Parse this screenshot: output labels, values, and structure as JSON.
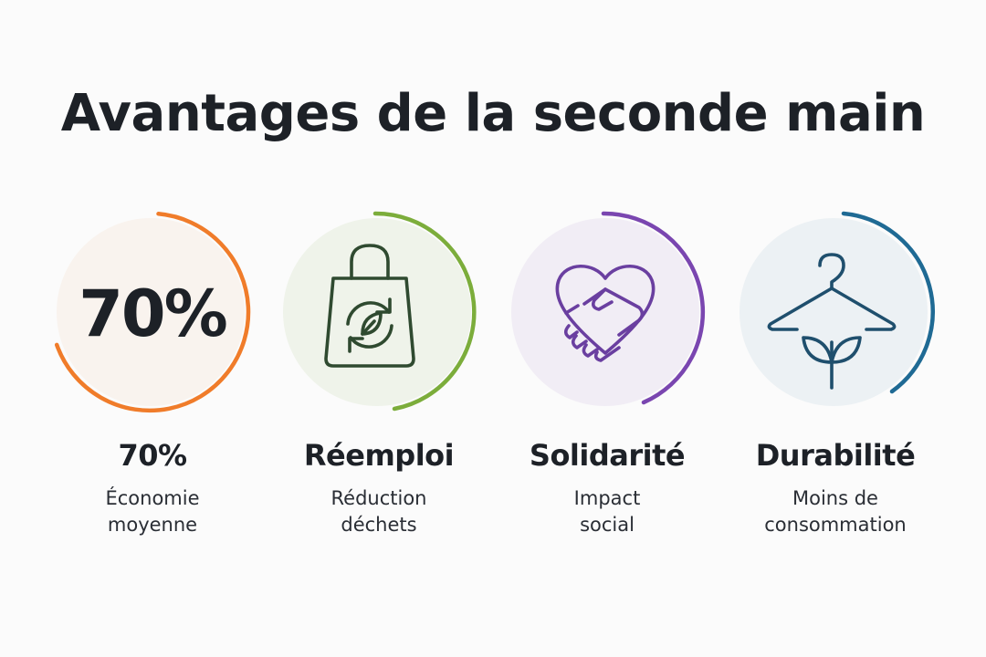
{
  "title": "Avantages de la seconde main",
  "cards": [
    {
      "badge": "70%",
      "title": "70%",
      "subtitle_line1": "Économie",
      "subtitle_line2": "moyenne",
      "icon": "percent-value",
      "accent": "#f07c2a",
      "fill": "#f9f3ee"
    },
    {
      "title": "Réemploi",
      "subtitle_line1": "Réduction",
      "subtitle_line2": "déchets",
      "icon": "recycle-bag-icon",
      "accent": "#7cad3b",
      "fill": "#eff3ea"
    },
    {
      "title": "Solidarité",
      "subtitle_line1": "Impact",
      "subtitle_line2": "social",
      "icon": "heart-handshake-icon",
      "accent": "#7a46b0",
      "fill": "#f1edf5"
    },
    {
      "title": "Durabilité",
      "subtitle_line1": "Moins de",
      "subtitle_line2": "consommation",
      "icon": "hanger-sprout-icon",
      "accent": "#1f6a94",
      "fill": "#ecf1f4"
    }
  ]
}
